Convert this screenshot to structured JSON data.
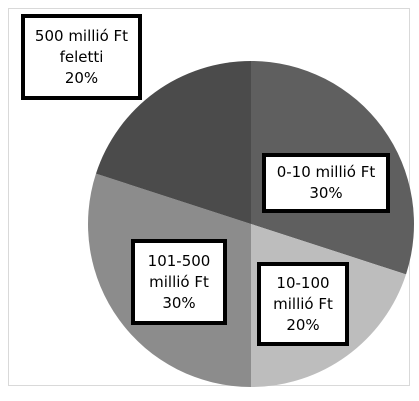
{
  "chart_data": {
    "type": "pie",
    "slices": [
      {
        "label": "0-10 millió Ft",
        "value": 30,
        "display": [
          "0-10 millió Ft",
          "30%"
        ],
        "color": "#5f5f5f"
      },
      {
        "label": "10-100 millió Ft",
        "value": 20,
        "display": [
          "10-100",
          "millió Ft",
          "20%"
        ],
        "color": "#bdbdbd"
      },
      {
        "label": "101-500 millió Ft",
        "value": 30,
        "display": [
          "101-500",
          "millió Ft",
          "30%"
        ],
        "color": "#8c8c8c"
      },
      {
        "label": "500 millió Ft feletti",
        "value": 20,
        "display": [
          "500 millió Ft",
          "feletti",
          "20%"
        ],
        "color": "#4b4b4b"
      }
    ],
    "start_angle_deg": 0,
    "direction": "clockwise",
    "unit": "%"
  }
}
